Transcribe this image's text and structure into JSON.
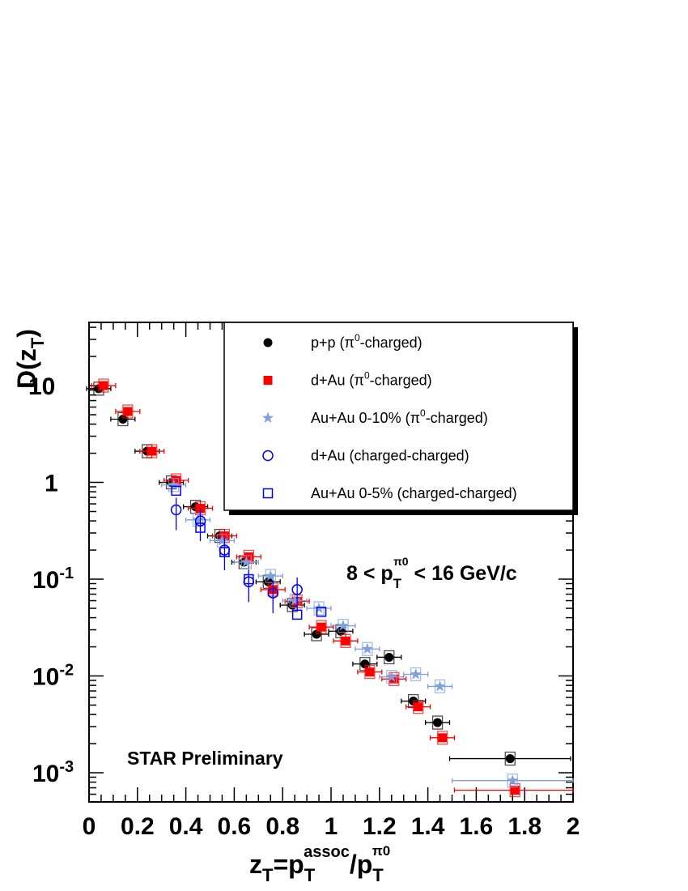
{
  "chart_data": {
    "type": "scatter",
    "title": "",
    "xlabel": {
      "main": "z",
      "sub1": "T",
      "eq": "=p",
      "sub2": "T",
      "sup2": "assoc",
      "slash": "/p",
      "sub3": "T",
      "sup3": "π0"
    },
    "ylabel": {
      "main": "D(z",
      "sub": "T",
      "close": ")"
    },
    "xlim": [
      0,
      2
    ],
    "ylim": [
      0.0005,
      45
    ],
    "yscale": "log",
    "x_ticks": [
      "0",
      "0.2",
      "0.4",
      "0.6",
      "0.8",
      "1",
      "1.2",
      "1.4",
      "1.6",
      "1.8",
      "2"
    ],
    "y_ticks": [
      {
        "value": 10,
        "base": "10",
        "exp": ""
      },
      {
        "value": 1,
        "base": "1",
        "exp": ""
      },
      {
        "value": 0.1,
        "base": "10",
        "exp": "-1"
      },
      {
        "value": 0.01,
        "base": "10",
        "exp": "-2"
      },
      {
        "value": 0.001,
        "base": "10",
        "exp": "-3"
      }
    ],
    "legend_position": "top-right",
    "annotations": {
      "range": {
        "a": "8 < p",
        "sub": "T",
        "sup": "π0",
        "b": " < 16 GeV/c"
      },
      "preliminary": "STAR Preliminary"
    },
    "series": [
      {
        "name": "p+p (π0-charged)",
        "label": "p+p (π",
        "sup": "0",
        "tail": "-charged)",
        "marker": "circle-filled",
        "color": "#000000",
        "x": [
          0.04,
          0.14,
          0.24,
          0.34,
          0.44,
          0.54,
          0.64,
          0.74,
          0.84,
          0.94,
          1.04,
          1.14,
          1.24,
          1.34,
          1.44,
          1.74
        ],
        "y": [
          9.3,
          4.5,
          2.1,
          1.0,
          0.56,
          0.28,
          0.15,
          0.094,
          0.054,
          0.027,
          0.029,
          0.0133,
          0.0156,
          0.0055,
          0.0033,
          0.0014
        ],
        "xerr": [
          0.05,
          0.05,
          0.05,
          0.05,
          0.05,
          0.05,
          0.05,
          0.05,
          0.05,
          0.05,
          0.05,
          0.05,
          0.05,
          0.05,
          0.05,
          0.25
        ]
      },
      {
        "name": "d+Au (π0-charged)",
        "label": "d+Au (π",
        "sup": "0",
        "tail": "-charged)",
        "marker": "square-filled",
        "color": "#ff0000",
        "x": [
          0.06,
          0.16,
          0.26,
          0.36,
          0.46,
          0.56,
          0.66,
          0.76,
          0.86,
          0.96,
          1.06,
          1.16,
          1.26,
          1.36,
          1.46,
          1.76
        ],
        "y": [
          10,
          5.4,
          2.1,
          1.05,
          0.54,
          0.28,
          0.17,
          0.078,
          0.059,
          0.032,
          0.023,
          0.011,
          0.0093,
          0.0048,
          0.0023,
          0.00066
        ],
        "xerr": [
          0.05,
          0.05,
          0.05,
          0.05,
          0.05,
          0.05,
          0.05,
          0.05,
          0.05,
          0.05,
          0.05,
          0.05,
          0.05,
          0.05,
          0.05,
          0.25
        ]
      },
      {
        "name": "Au+Au 0-10% (π0-charged)",
        "label": "Au+Au 0-10% (π",
        "sup": "0",
        "tail": "-charged)",
        "marker": "star",
        "color": "#7f9fdf",
        "x": [
          0.35,
          0.45,
          0.55,
          0.65,
          0.75,
          0.85,
          0.95,
          1.05,
          1.15,
          1.25,
          1.35,
          1.45,
          1.75
        ],
        "y": [
          0.94,
          0.41,
          0.25,
          0.15,
          0.108,
          0.06,
          0.05,
          0.033,
          0.019,
          0.0098,
          0.0104,
          0.0078,
          0.00083
        ],
        "xerr": [
          0.05,
          0.05,
          0.05,
          0.05,
          0.05,
          0.05,
          0.05,
          0.05,
          0.05,
          0.05,
          0.05,
          0.05,
          0.25
        ]
      },
      {
        "name": "d+Au (charged-charged)",
        "label": "d+Au (charged-charged)",
        "sup": "",
        "tail": "",
        "marker": "circle-open",
        "color": "#0000ff",
        "x": [
          0.36,
          0.46,
          0.56,
          0.66,
          0.76,
          0.86
        ],
        "y": [
          0.52,
          0.4,
          0.2,
          0.094,
          0.072,
          0.078
        ],
        "xerr": [
          0,
          0,
          0,
          0,
          0,
          0
        ]
      },
      {
        "name": "Au+Au 0-5% (charged-charged)",
        "label": "Au+Au 0-5% (charged-charged)",
        "sup": "",
        "tail": "",
        "marker": "square-open",
        "color": "#0000ff",
        "x": [
          0.36,
          0.46,
          0.56,
          0.66,
          0.86,
          0.96
        ],
        "y": [
          0.82,
          0.34,
          0.19,
          0.1,
          0.043,
          0.046
        ],
        "xerr": [
          0,
          0,
          0,
          0,
          0,
          0
        ]
      }
    ]
  }
}
